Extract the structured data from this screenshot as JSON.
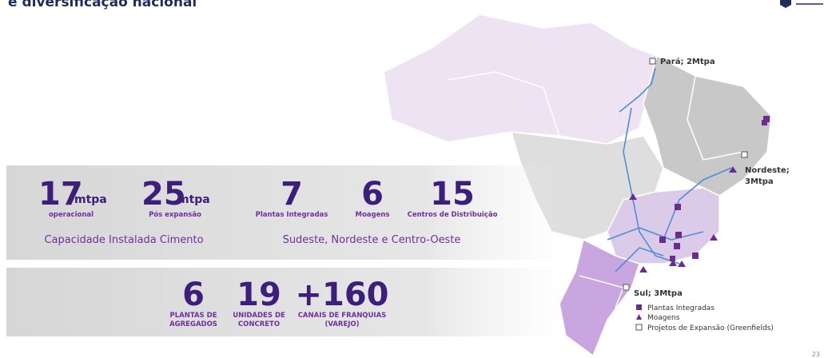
{
  "title": "e diversificação nacional",
  "capacity": {
    "items": [
      {
        "value": "17",
        "unit": "mtpa",
        "label": "operacional"
      },
      {
        "value": "25",
        "unit": "mtpa",
        "label": "Pós expansão"
      }
    ],
    "caption": "Capacidade Instalada Cimento"
  },
  "units": {
    "items": [
      {
        "value": "7",
        "label": "Plantas Integradas"
      },
      {
        "value": "6",
        "label": "Moagens"
      },
      {
        "value": "15",
        "label": "Centros de Distribuição"
      }
    ],
    "caption": "Sudeste, Nordeste e Centro-Oeste"
  },
  "other": {
    "items": [
      {
        "value": "6",
        "label": [
          "PLANTAS DE",
          "AGREGADOS"
        ]
      },
      {
        "value": "19",
        "label": [
          "UNIDADES DE",
          "CONCRETO"
        ]
      },
      {
        "value": "+160",
        "label": [
          "CANAIS DE FRANQUIAS",
          "(VAREJO)"
        ]
      }
    ]
  },
  "map": {
    "labels": [
      "Pará; 2Mtpa",
      "Nordeste;",
      "3Mtpa",
      "Sul; 3Mtpa"
    ]
  },
  "legend": [
    "Plantas Integradas",
    "Moagens",
    "Projetos de Expansão (Greenfields)"
  ],
  "page": "23"
}
